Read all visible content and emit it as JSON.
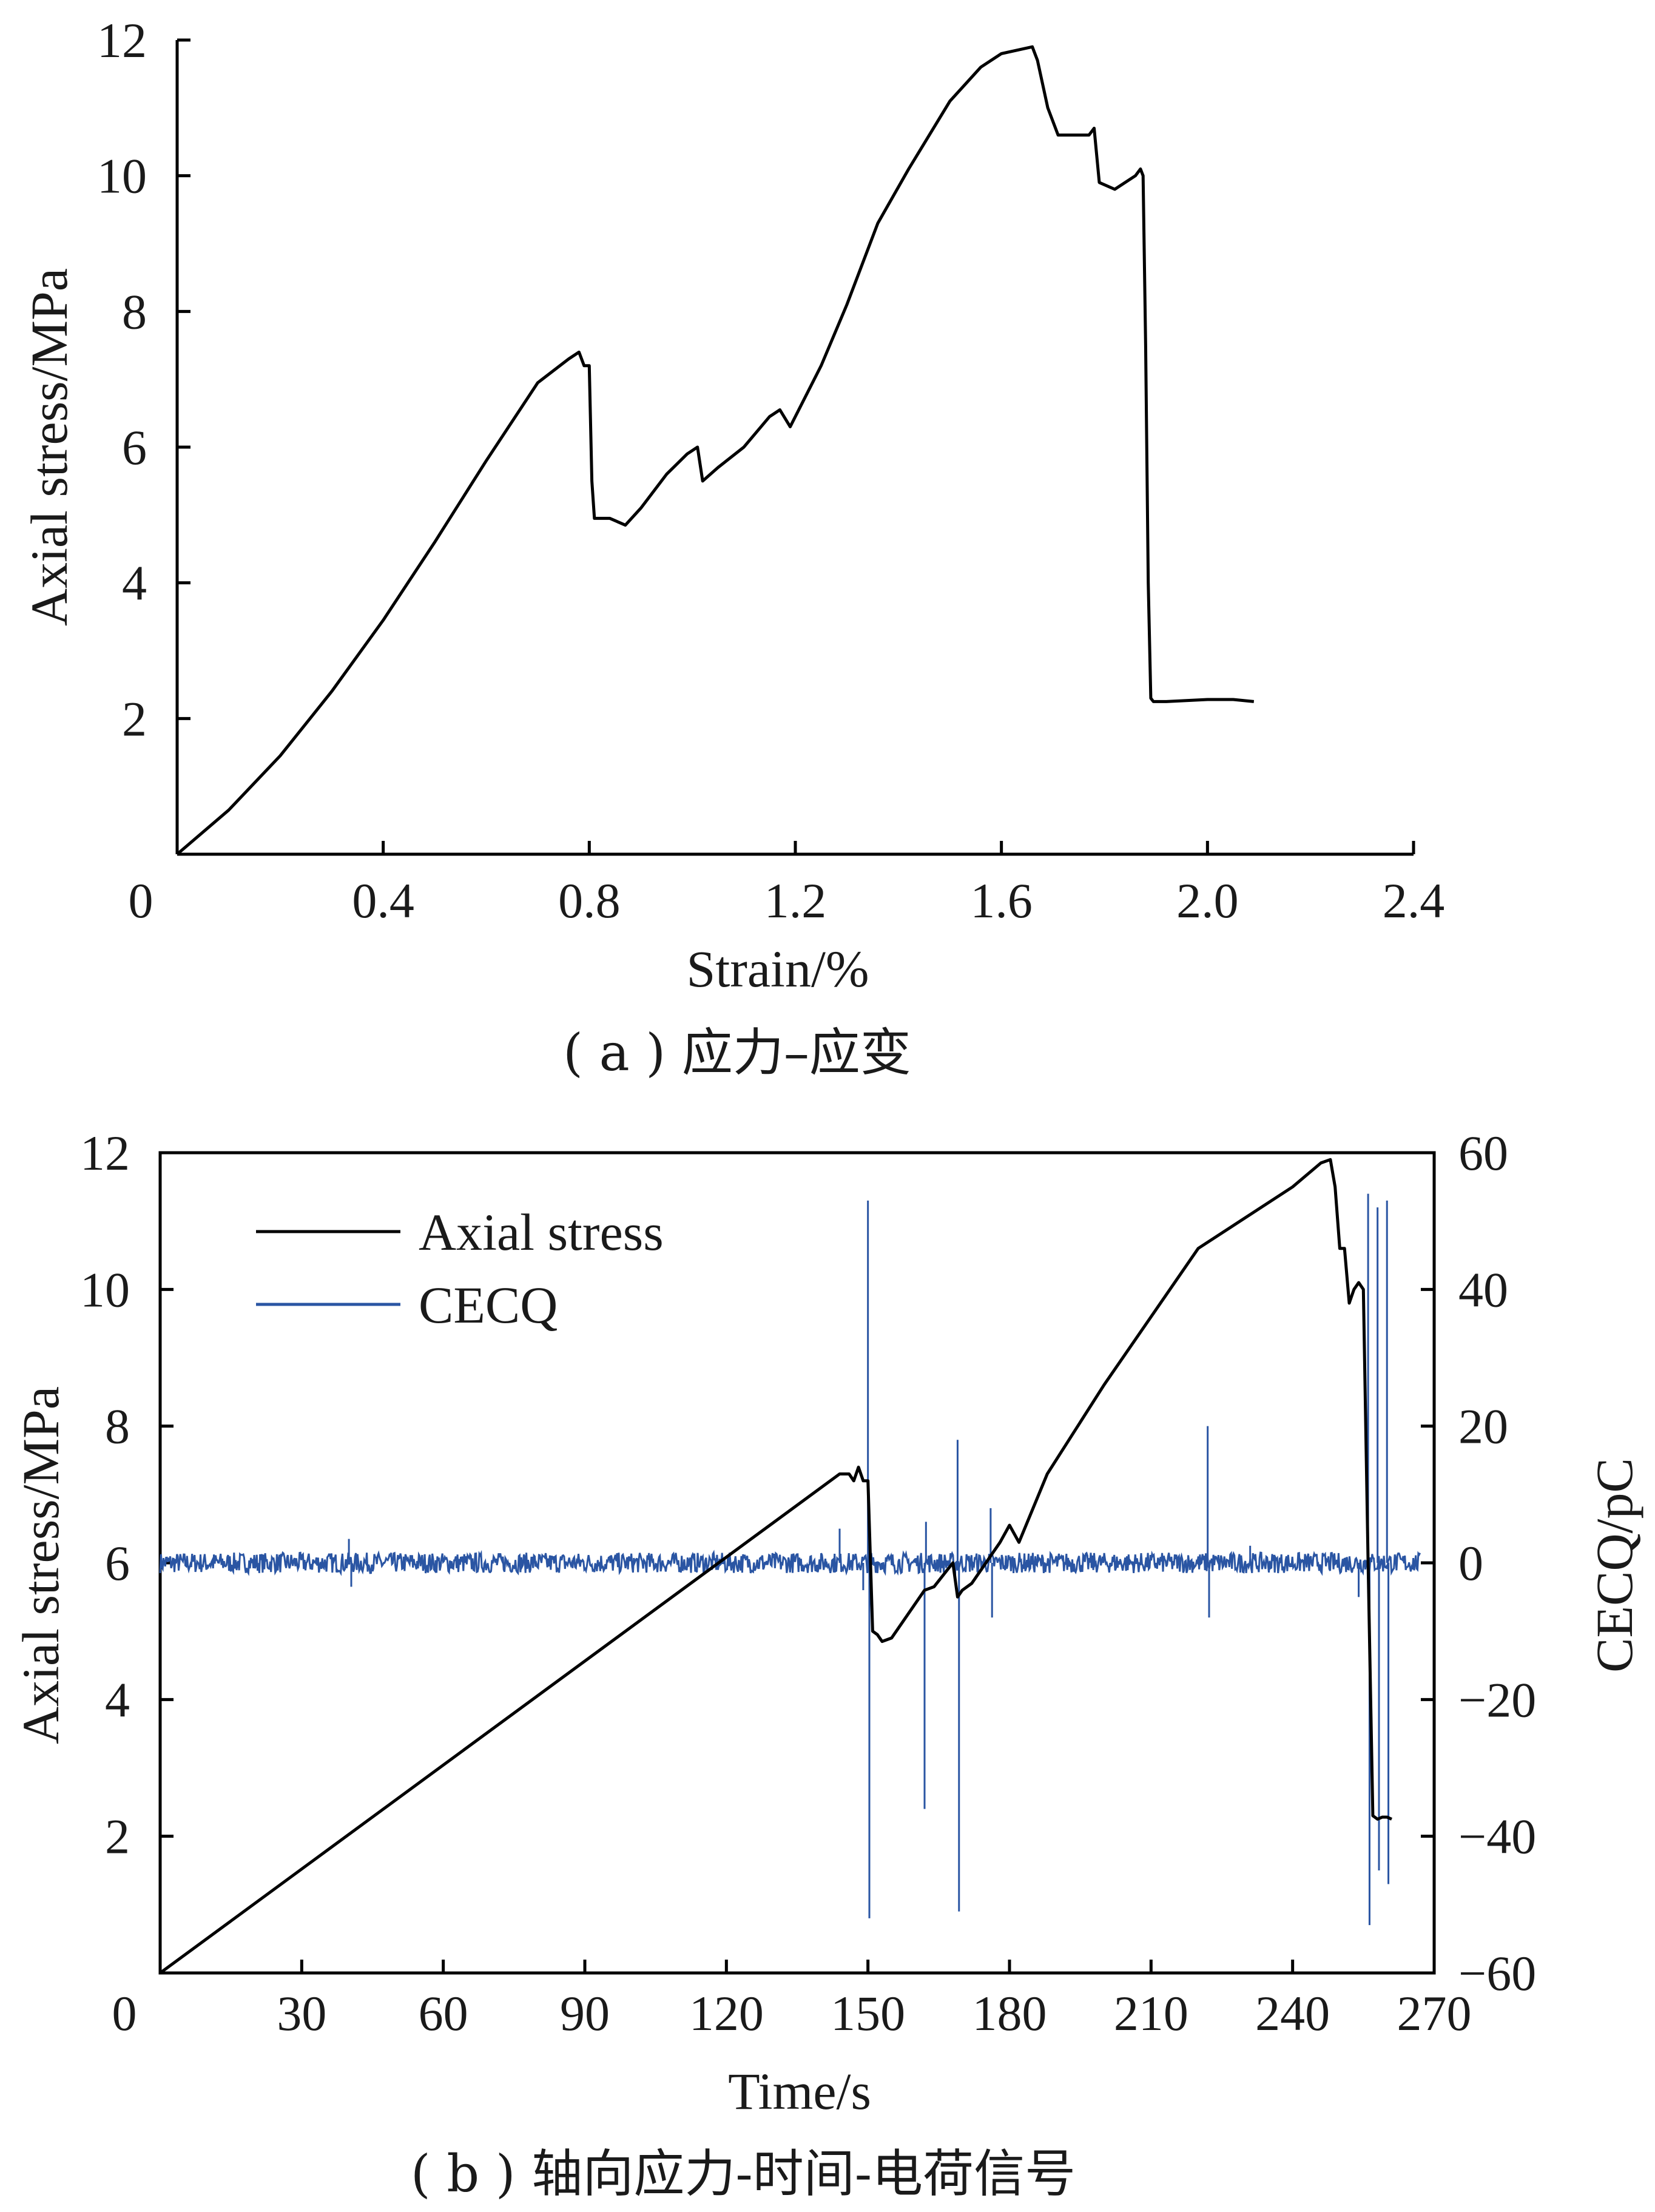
{
  "chart_data": [
    {
      "type": "line",
      "caption": "( a ) 应力–应变",
      "xlabel": "Strain/%",
      "ylabel": "Axial stress/MPa",
      "xlim": [
        0,
        2.4
      ],
      "ylim": [
        0,
        12
      ],
      "xticks": [
        "0",
        "0.4",
        "0.8",
        "1.2",
        "1.6",
        "2.0",
        "2.4"
      ],
      "yticks": [
        "2",
        "4",
        "6",
        "8",
        "10",
        "12"
      ],
      "grid": false,
      "series": [
        {
          "color": "#000000",
          "x": [
            0,
            0.1,
            0.2,
            0.3,
            0.4,
            0.5,
            0.6,
            0.7,
            0.76,
            0.78,
            0.79,
            0.8,
            0.805,
            0.81,
            0.84,
            0.87,
            0.9,
            0.95,
            0.99,
            1.01,
            1.02,
            1.05,
            1.1,
            1.15,
            1.17,
            1.19,
            1.25,
            1.3,
            1.36,
            1.42,
            1.5,
            1.56,
            1.6,
            1.63,
            1.66,
            1.67,
            1.69,
            1.71,
            1.74,
            1.77,
            1.78,
            1.79,
            1.82,
            1.86,
            1.87,
            1.875,
            1.88,
            1.885,
            1.89,
            1.895,
            1.92,
            2.0,
            2.05,
            2.09
          ],
          "y": [
            0,
            0.65,
            1.45,
            2.4,
            3.45,
            4.6,
            5.8,
            6.95,
            7.3,
            7.4,
            7.2,
            7.2,
            5.5,
            4.95,
            4.95,
            4.85,
            5.1,
            5.6,
            5.9,
            6.0,
            5.5,
            5.7,
            6.0,
            6.45,
            6.55,
            6.3,
            7.2,
            8.1,
            9.3,
            10.1,
            11.1,
            11.6,
            11.8,
            11.85,
            11.9,
            11.7,
            11.0,
            10.6,
            10.6,
            10.6,
            10.7,
            9.9,
            9.8,
            10.0,
            10.1,
            10.0,
            7.5,
            4.0,
            2.3,
            2.25,
            2.25,
            2.28,
            2.28,
            2.25
          ]
        }
      ]
    },
    {
      "type": "line",
      "caption": "( b ) 轴向应力-时间-电荷信号",
      "xlabel": "Time/s",
      "ylabel_left": "Axial stress/MPa",
      "ylabel_right": "CECQ/pC",
      "xlim": [
        0,
        270
      ],
      "ylim_left": [
        0,
        12
      ],
      "ylim_right": [
        -60,
        60
      ],
      "xticks": [
        "0",
        "30",
        "60",
        "90",
        "120",
        "150",
        "180",
        "210",
        "240",
        "270"
      ],
      "yticks_left": [
        "2",
        "4",
        "6",
        "8",
        "10",
        "12"
      ],
      "yticks_right": [
        "−60",
        "−40",
        "−20",
        "0",
        "20",
        "40",
        "60"
      ],
      "legend": {
        "position": "top-left",
        "entries": [
          "Axial stress",
          "CECQ"
        ]
      },
      "grid": false,
      "series": [
        {
          "name": "Axial stress",
          "axis": "left",
          "color": "#000000",
          "x": [
            0,
            144,
            146,
            147,
            148,
            149,
            150,
            151,
            152,
            153,
            155,
            162,
            164,
            168,
            169,
            170,
            172,
            178,
            180,
            182,
            188,
            200,
            220,
            240,
            246,
            248,
            249,
            250,
            251,
            252,
            253,
            254,
            255,
            256,
            257,
            258,
            259,
            260,
            261
          ],
          "y": [
            0,
            7.3,
            7.3,
            7.2,
            7.4,
            7.2,
            7.2,
            5.0,
            4.95,
            4.85,
            4.9,
            5.6,
            5.65,
            6.0,
            5.5,
            5.6,
            5.7,
            6.3,
            6.55,
            6.3,
            7.3,
            8.6,
            10.6,
            11.5,
            11.85,
            11.9,
            11.5,
            10.6,
            10.6,
            9.8,
            10.0,
            10.1,
            10.0,
            6.0,
            2.3,
            2.25,
            2.28,
            2.28,
            2.25
          ]
        },
        {
          "name": "CECQ",
          "axis": "right",
          "color": "#2a55a3",
          "baseline": 0,
          "noise_band": [
            -1.5,
            1.5
          ],
          "x_range": [
            0,
            267
          ],
          "spikes": [
            {
              "x": 40,
              "y": 3.5
            },
            {
              "x": 40.5,
              "y": -3.5
            },
            {
              "x": 144,
              "y": 5
            },
            {
              "x": 149,
              "y": -4
            },
            {
              "x": 150,
              "y": 53
            },
            {
              "x": 150.3,
              "y": -52
            },
            {
              "x": 162,
              "y": -36
            },
            {
              "x": 162.3,
              "y": 6
            },
            {
              "x": 168.5,
              "y": -3
            },
            {
              "x": 169,
              "y": 18
            },
            {
              "x": 169.3,
              "y": -51
            },
            {
              "x": 176,
              "y": 8
            },
            {
              "x": 176.3,
              "y": -8
            },
            {
              "x": 222,
              "y": 20
            },
            {
              "x": 222.3,
              "y": -8
            },
            {
              "x": 231,
              "y": 2.5
            },
            {
              "x": 254,
              "y": -5
            },
            {
              "x": 256,
              "y": 54
            },
            {
              "x": 256.3,
              "y": -53
            },
            {
              "x": 258,
              "y": 52
            },
            {
              "x": 258.3,
              "y": -45
            },
            {
              "x": 260,
              "y": 53
            },
            {
              "x": 260.3,
              "y": -47
            }
          ]
        }
      ]
    }
  ]
}
